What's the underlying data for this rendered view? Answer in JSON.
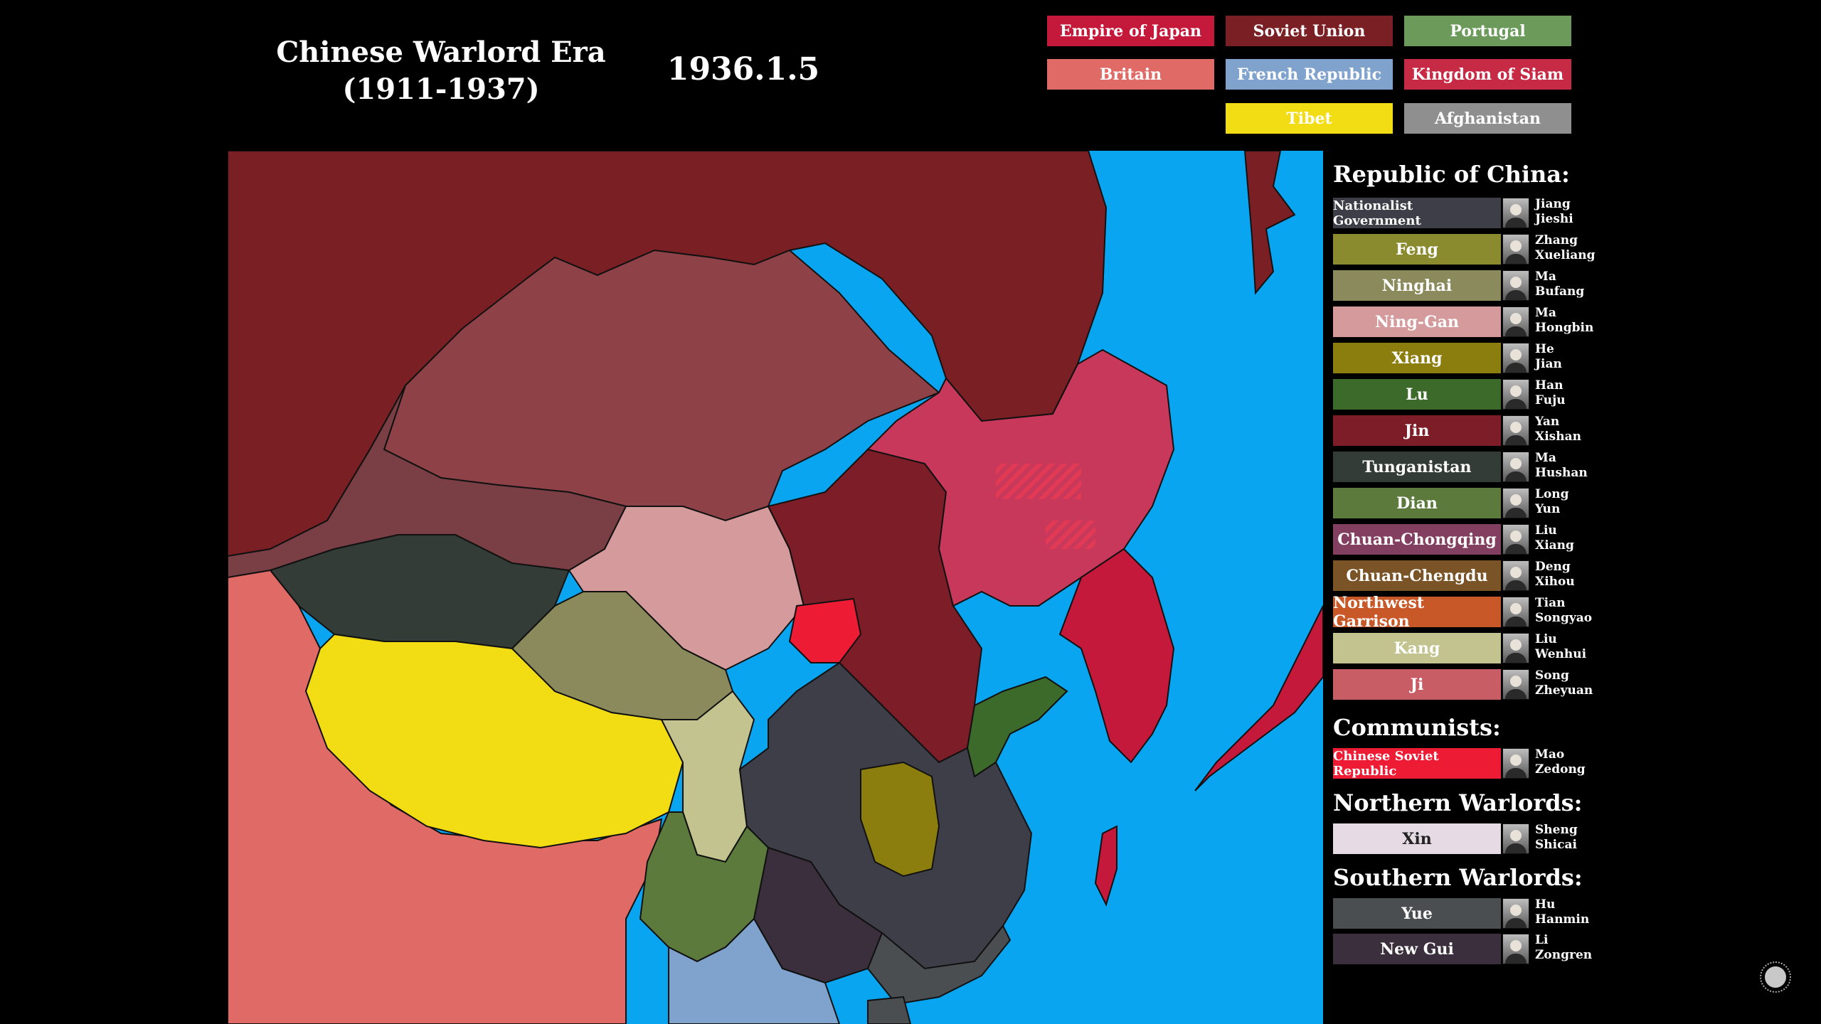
{
  "title": {
    "line1": "Chinese Warlord Era",
    "line2": "(1911-1937)"
  },
  "date": "1936.1.5",
  "legend": [
    {
      "label": "Empire of Japan",
      "color": "#c4193a"
    },
    {
      "label": "Soviet Union",
      "color": "#7a1f23"
    },
    {
      "label": "Portugal",
      "color": "#6b9a5b"
    },
    {
      "label": "Britain",
      "color": "#e06a65"
    },
    {
      "label": "French Republic",
      "color": "#7fa3cd"
    },
    {
      "label": "Kingdom of Siam",
      "color": "#c62a45"
    },
    {
      "label": "Tibet",
      "color": "#f2dc14"
    },
    {
      "label": "Afghanistan",
      "color": "#8f8f8f"
    }
  ],
  "sections": {
    "roc": "Republic of China:",
    "communists": "Communists:",
    "northern": "Northern Warlords:",
    "southern": "Southern Warlords:"
  },
  "roc_factions": [
    {
      "name": "Nationalist Government",
      "leader1": "Jiang",
      "leader2": "Jieshi",
      "color": "#3d3e48",
      "icon": "portrait-icon"
    },
    {
      "name": "Feng",
      "leader1": "Zhang",
      "leader2": "Xueliang",
      "color": "#8a8a2e",
      "icon": "portrait-icon"
    },
    {
      "name": "Ninghai",
      "leader1": "Ma",
      "leader2": "Bufang",
      "color": "#8a8a5c",
      "icon": "portrait-icon"
    },
    {
      "name": "Ning-Gan",
      "leader1": "Ma",
      "leader2": "Hongbin",
      "color": "#d49a9c",
      "icon": "portrait-icon"
    },
    {
      "name": "Xiang",
      "leader1": "He",
      "leader2": "Jian",
      "color": "#8c7d0f",
      "icon": "portrait-icon"
    },
    {
      "name": "Lu",
      "leader1": "Han",
      "leader2": "Fuju",
      "color": "#3b6a2a",
      "icon": "portrait-icon"
    },
    {
      "name": "Jin",
      "leader1": "Yan",
      "leader2": "Xishan",
      "color": "#7c1d27",
      "icon": "portrait-icon"
    },
    {
      "name": "Tunganistan",
      "leader1": "Ma",
      "leader2": "Hushan",
      "color": "#333c37",
      "icon": "portrait-icon"
    },
    {
      "name": "Dian",
      "leader1": "Long",
      "leader2": "Yun",
      "color": "#5b7a3c",
      "icon": "portrait-icon"
    },
    {
      "name": "Chuan-Chongqing",
      "leader1": "Liu",
      "leader2": "Xiang",
      "color": "#823f5f",
      "icon": "portrait-icon"
    },
    {
      "name": "Chuan-Chengdu",
      "leader1": "Deng",
      "leader2": "Xihou",
      "color": "#7a5426",
      "icon": "portrait-icon"
    },
    {
      "name": "Northwest Garrison",
      "leader1": "Tian",
      "leader2": "Songyao",
      "color": "#c95829",
      "icon": "portrait-icon"
    },
    {
      "name": "Kang",
      "leader1": "Liu",
      "leader2": "Wenhui",
      "color": "#c3c38f",
      "icon": "portrait-icon"
    },
    {
      "name": "Ji",
      "leader1": "Song",
      "leader2": "Zheyuan",
      "color": "#c85d65",
      "icon": "portrait-icon"
    }
  ],
  "communist_factions": [
    {
      "name": "Chinese Soviet Republic",
      "leader1": "Mao",
      "leader2": "Zedong",
      "color": "#ee1b34",
      "icon": "portrait-icon"
    }
  ],
  "northern_factions": [
    {
      "name": "Xin",
      "leader1": "Sheng",
      "leader2": "Shicai",
      "color": "#e6dbe4",
      "textColor": "#222222",
      "icon": "portrait-icon"
    }
  ],
  "southern_factions": [
    {
      "name": "Yue",
      "leader1": "Hu",
      "leader2": "Hanmin",
      "color": "#4a4e50",
      "icon": "portrait-icon"
    },
    {
      "name": "New Gui",
      "leader1": "Li",
      "leader2": "Zongren",
      "color": "#3b2e3d",
      "icon": "portrait-icon"
    }
  ],
  "map_colors": {
    "sea": "#0aa5f0",
    "soviet": "#7a1f23",
    "mongolia": "#8e4248",
    "xin": "#7a3e45",
    "tunganistan": "#333c37",
    "tibet": "#f2dc14",
    "britain": "#e06a65",
    "ning_gan": "#d49a9c",
    "ninghai": "#8a8a5c",
    "kang": "#c3c38f",
    "nationalist": "#3d3e48",
    "jin": "#7c1d27",
    "manchukuo": "#c8385a",
    "japan": "#c4193a",
    "lu": "#3b6a2a",
    "csr": "#ee1b34",
    "xiang": "#8c7d0f",
    "dian": "#5b7a3c",
    "yue": "#4a4e50",
    "new_gui": "#3b2e3d",
    "french": "#7fa3cd"
  },
  "control_icon": "play-toggle-icon"
}
